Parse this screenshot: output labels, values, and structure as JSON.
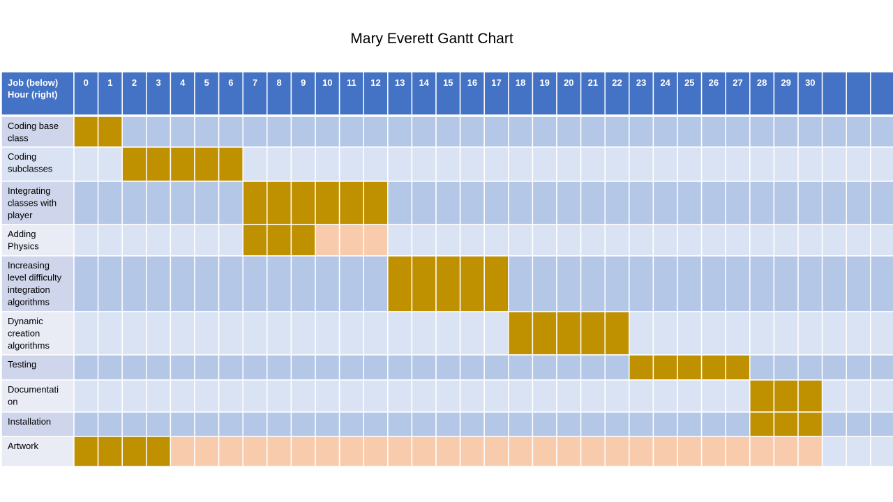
{
  "chart_data": {
    "type": "table",
    "title": "Mary Everett Gantt Chart",
    "header_label_lines": [
      "Job (below)",
      "Hour (right)"
    ],
    "hours": [
      0,
      1,
      2,
      3,
      4,
      5,
      6,
      7,
      8,
      9,
      10,
      11,
      12,
      13,
      14,
      15,
      16,
      17,
      18,
      19,
      20,
      21,
      22,
      23,
      24,
      25,
      26,
      27,
      28,
      29,
      30
    ],
    "extra_blank_columns": 3,
    "tasks": [
      {
        "label_lines": [
          "Coding base",
          "class"
        ],
        "work": [
          [
            0,
            1
          ]
        ],
        "slack": []
      },
      {
        "label_lines": [
          "Coding",
          "subclasses"
        ],
        "work": [
          [
            2,
            6
          ]
        ],
        "slack": []
      },
      {
        "label_lines": [
          "Integrating",
          "classes with",
          "player"
        ],
        "work": [
          [
            7,
            12
          ]
        ],
        "slack": []
      },
      {
        "label_lines": [
          "Adding",
          "Physics"
        ],
        "work": [
          [
            7,
            9
          ]
        ],
        "slack": [
          [
            10,
            12
          ]
        ]
      },
      {
        "label_lines": [
          "Increasing",
          "level difficulty",
          "integration",
          "algorithms"
        ],
        "work": [
          [
            13,
            17
          ]
        ],
        "slack": []
      },
      {
        "label_lines": [
          "Dynamic",
          "creation",
          "algorithms"
        ],
        "work": [
          [
            18,
            22
          ]
        ],
        "slack": []
      },
      {
        "label_lines": [
          "Testing"
        ],
        "work": [
          [
            23,
            27
          ]
        ],
        "slack": []
      },
      {
        "label_lines": [
          "Documentati",
          "on"
        ],
        "work": [
          [
            28,
            30
          ]
        ],
        "slack": []
      },
      {
        "label_lines": [
          "Installation"
        ],
        "work": [
          [
            28,
            30
          ]
        ],
        "slack": []
      },
      {
        "label_lines": [
          "Artwork"
        ],
        "work": [
          [
            0,
            3
          ]
        ],
        "slack": [
          [
            4,
            30
          ]
        ]
      }
    ],
    "colors": {
      "header": "#4472C4",
      "work": "#BF9000",
      "slack": "#F8CBAD",
      "row_dark": "#B4C7E7",
      "row_light": "#DAE3F3",
      "label_dark": "#CFD5EA",
      "label_light": "#E9EBF5",
      "label_first_row_light": "#DAE3F3",
      "grid_line": "#ffffff"
    },
    "grid": true
  }
}
